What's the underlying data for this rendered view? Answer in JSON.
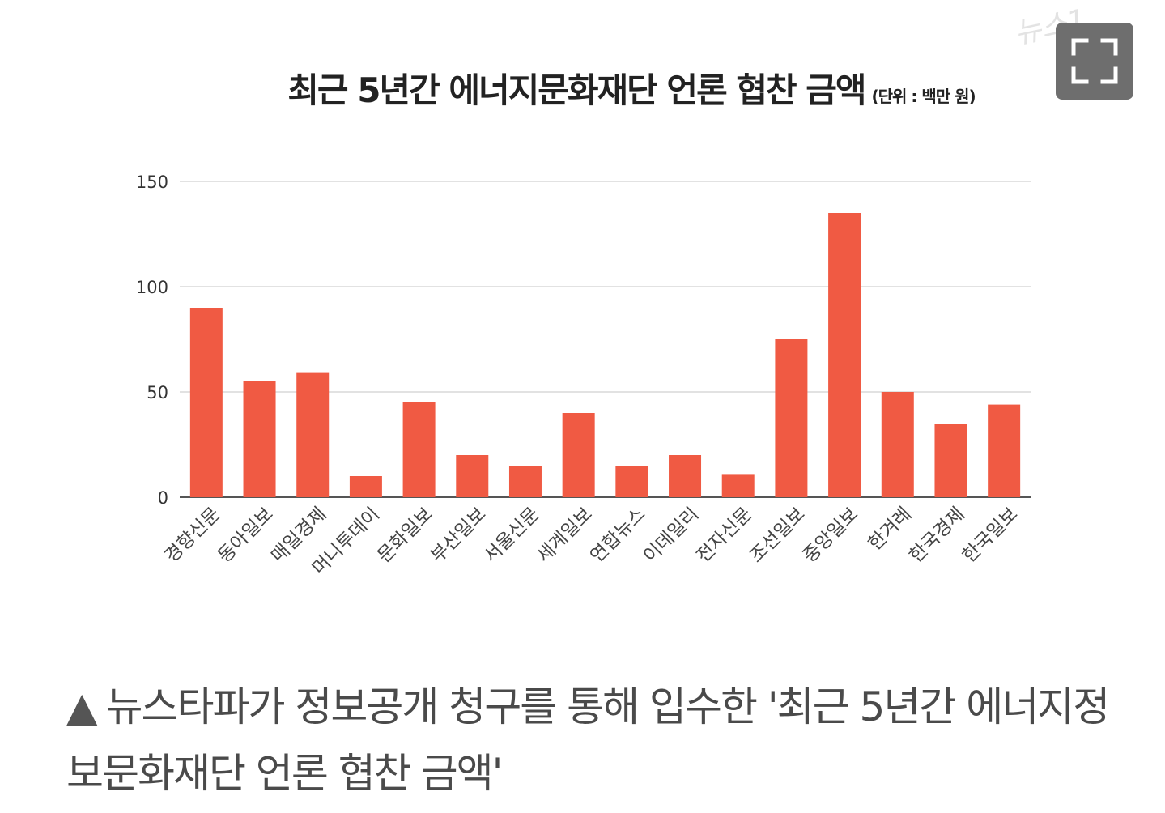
{
  "chart_data": {
    "type": "bar",
    "title": "최근 5년간 에너지문화재단 언론 협찬 금액",
    "unit_note": "(단위 : 백만 원)",
    "categories": [
      "경향신문",
      "동아일보",
      "매일경제",
      "머니투데이",
      "문화일보",
      "부산일보",
      "서울신문",
      "세계일보",
      "연합뉴스",
      "이데일리",
      "전자신문",
      "조선일보",
      "중앙일보",
      "한겨레",
      "한국경제",
      "한국일보"
    ],
    "series": [
      {
        "values": [
          90,
          55,
          59,
          10,
          45,
          20,
          15,
          40,
          15,
          20,
          11,
          75,
          135,
          50,
          35,
          44
        ]
      }
    ],
    "ylim": [
      0,
      150
    ],
    "yticks": [
      "0",
      "50",
      "100",
      "150"
    ],
    "ytick_values": [
      0,
      50,
      100,
      150
    ],
    "grid": true,
    "bar_color": "#f05a43",
    "legend": "none"
  },
  "watermark": "뉴스1",
  "expand_button": {
    "icon": "expand-icon",
    "color": "#6e6e6e"
  },
  "caption": {
    "symbol": "▲",
    "text": "뉴스타파가 정보공개 청구를 통해 입수한 '최근 5년간 에너지정보문화재단 언론 협찬 금액'"
  }
}
